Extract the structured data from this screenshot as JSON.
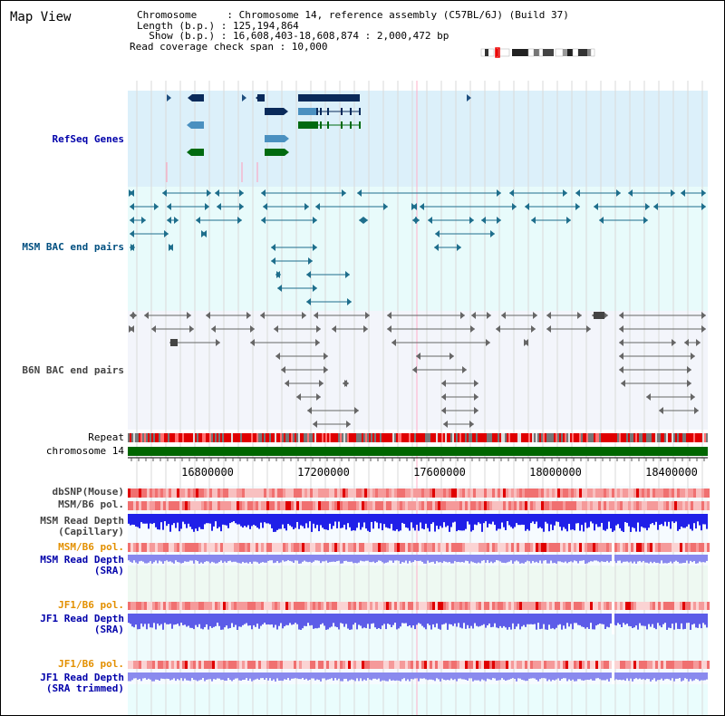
{
  "title": "Map View",
  "info": {
    "chromosome_line": "Chromosome     : Chromosome 14, reference assembly (C57BL/6J) (Build 37)",
    "length_line": "Length (b.p.) : 125,194,864",
    "show_line": "  Show (b.p.) : 16,608,403-18,608,874 : 2,000,472 bp",
    "span_line": "Read coverage check span : 10,000"
  },
  "tracks": {
    "refseq": "RefSeq Genes",
    "msm_bac": "MSM BAC end pairs",
    "b6n_bac": "B6N BAC end pairs",
    "repeat": "Repeat",
    "chromosome": "chromosome 14",
    "dbsnp": "dbSNP(Mouse)",
    "msm_b6_pol_1": "MSM/B6 pol.",
    "msm_depth_cap": "MSM Read Depth\n(Capillary)",
    "msm_b6_pol_2": "MSM/B6 pol.",
    "msm_depth_sra": "MSM Read Depth\n(SRA)",
    "jf1_b6_pol_1": "JF1/B6 pol.",
    "jf1_depth_sra": "JF1 Read Depth\n(SRA)",
    "jf1_b6_pol_2": "JF1/B6 pol.",
    "jf1_depth_trim": "JF1 Read Depth\n(SRA trimmed)"
  },
  "axis": {
    "ticks": [
      "16800000",
      "17200000",
      "17600000",
      "18000000",
      "18400000"
    ]
  },
  "colors": {
    "blue_label": "#0000aa",
    "orange_label": "#e39000",
    "teal_label": "#004f80",
    "gray_label": "#444444",
    "refseq_bg": "#dcf0fa",
    "msm_bg": "#e8fbfb",
    "b6n_bg": "#f3f5fb",
    "chromosome": "#006600"
  }
}
